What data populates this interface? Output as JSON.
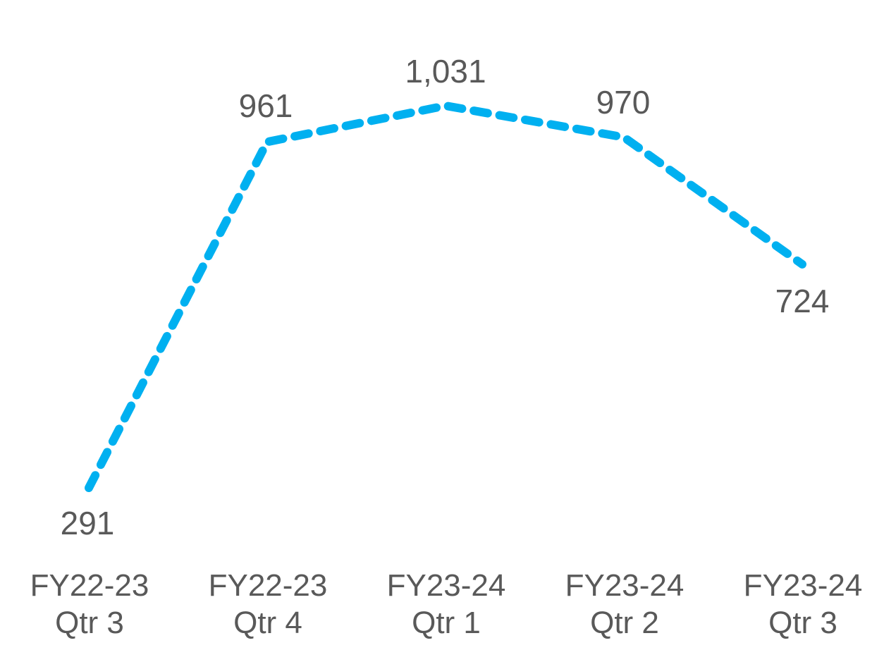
{
  "chart_data": {
    "type": "line",
    "title": "",
    "xlabel": "",
    "ylabel": "",
    "categories": [
      [
        "FY22-23",
        "Qtr 3"
      ],
      [
        "FY22-23",
        "Qtr 4"
      ],
      [
        "FY23-24",
        "Qtr 1"
      ],
      [
        "FY23-24",
        "Qtr 2"
      ],
      [
        "FY23-24",
        "Qtr 3"
      ]
    ],
    "series": [
      {
        "values": [
          291,
          961,
          1031,
          970,
          724
        ],
        "data_labels": [
          "291",
          "961",
          "1,031",
          "970",
          "724"
        ],
        "data_label_positions": [
          "below",
          "above",
          "above",
          "above",
          "below"
        ],
        "color": "#00B0F0",
        "line_style": "dashed"
      }
    ],
    "legend": "none",
    "grid": false,
    "axes_visible": false
  }
}
